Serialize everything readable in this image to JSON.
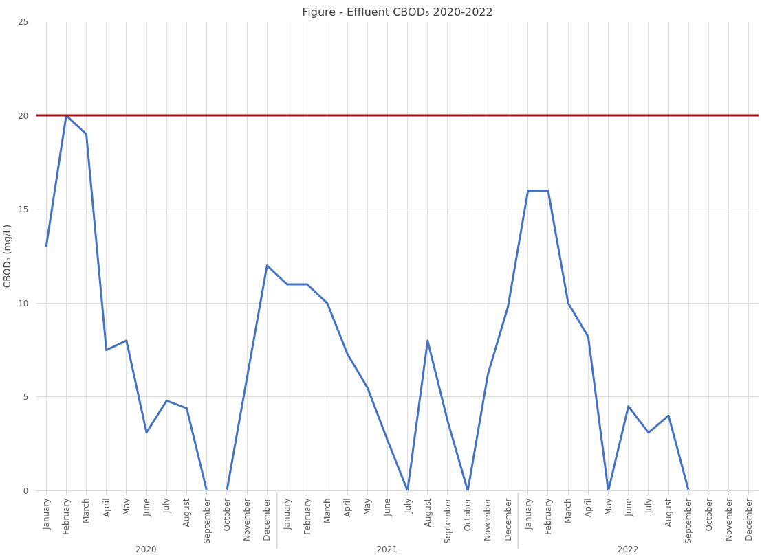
{
  "chart_data": {
    "type": "line",
    "title": "Figure - Effluent CBOD₅ 2020-2022",
    "ylabel": "CBOD₅ (mg/L)",
    "categories": [
      "January",
      "February",
      "March",
      "April",
      "May",
      "June",
      "July",
      "August",
      "September",
      "October",
      "November",
      "December",
      "January",
      "February",
      "March",
      "April",
      "May",
      "June",
      "July",
      "August",
      "September",
      "October",
      "November",
      "December",
      "January",
      "February",
      "March",
      "April",
      "May",
      "June",
      "July",
      "August",
      "September",
      "October",
      "November",
      "December"
    ],
    "annotations": [
      "2020",
      "2021",
      "2022"
    ],
    "series": [
      {
        "color": "#4472c4",
        "values": [
          13,
          20,
          19,
          7.5,
          8,
          3.1,
          4.8,
          4.4,
          0,
          0,
          6,
          12,
          11,
          11,
          10,
          7.3,
          5.5,
          2.7,
          0,
          8,
          3.7,
          0,
          6.2,
          9.8,
          16,
          16,
          10,
          8.2,
          0,
          4.5,
          3.1,
          4,
          0,
          0,
          0,
          0
        ]
      }
    ],
    "ylim": [
      0,
      25
    ],
    "yticks": [
      0,
      5,
      10,
      15,
      20,
      25
    ],
    "grid": true,
    "marker": "none",
    "line_style": "solid",
    "ref_lines": [
      {
        "axis": "y",
        "value": 20,
        "color": "#a50f15"
      }
    ]
  }
}
